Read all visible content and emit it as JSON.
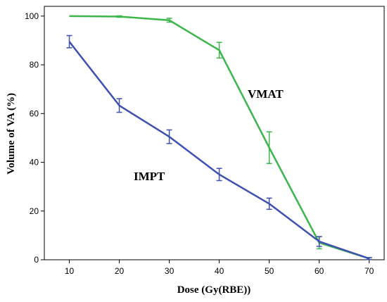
{
  "chart_data": {
    "type": "line",
    "xlabel": "Dose (Gy(RBE))",
    "ylabel": "Volume of VA (%)",
    "xlim": [
      5,
      73
    ],
    "ylim": [
      0,
      104
    ],
    "x_ticks": [
      10,
      20,
      30,
      40,
      50,
      60,
      70
    ],
    "y_ticks": [
      0,
      20,
      40,
      60,
      80,
      100
    ],
    "grid": false,
    "series": [
      {
        "name": "VMAT",
        "color": "#3cb64a",
        "x": [
          10,
          20,
          30,
          40,
          50,
          60,
          70
        ],
        "values": [
          100,
          99.8,
          98.3,
          86,
          46,
          7,
          0.5
        ],
        "error": [
          0,
          0.3,
          0.8,
          3.2,
          6.5,
          2.5,
          0.4
        ]
      },
      {
        "name": "IMPT",
        "color": "#3f51b0",
        "x": [
          10,
          20,
          30,
          40,
          50,
          60,
          70
        ],
        "values": [
          89.5,
          63.3,
          50.5,
          35,
          23,
          7.5,
          0.5
        ],
        "error": [
          2.5,
          2.8,
          2.8,
          2.5,
          2.3,
          2.0,
          0.4
        ]
      }
    ]
  }
}
